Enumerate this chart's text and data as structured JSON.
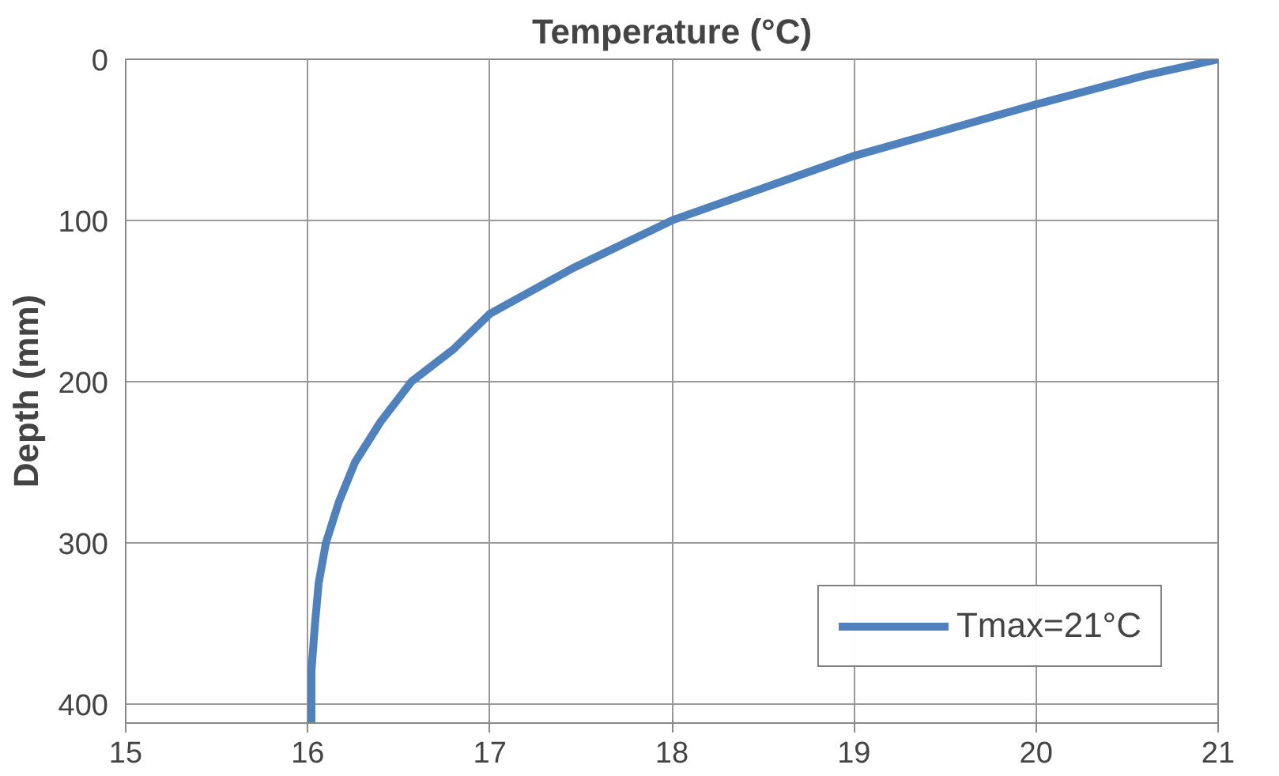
{
  "chart_data": {
    "type": "line",
    "title": "Temperature (°C)",
    "ylabel": "Depth (mm)",
    "xlim": [
      15,
      21
    ],
    "xticks": [
      15,
      16,
      17,
      18,
      19,
      20,
      21
    ],
    "ylim": [
      412,
      0
    ],
    "yticks": [
      0,
      100,
      200,
      300,
      400
    ],
    "grid": true,
    "legend": "bottom right",
    "marker": "none",
    "line_style": "solid",
    "series": [
      {
        "name": "Tmax=21°C",
        "color": "#4f81bd",
        "x": [
          21,
          20.6,
          20,
          19.5,
          19,
          18.5,
          18,
          17.45,
          17,
          16.8,
          16.57,
          16.4,
          16.26,
          16.17,
          16.1,
          16.06,
          16.04,
          16.02,
          16.02
        ],
        "values": [
          0,
          10,
          28,
          44,
          60,
          80,
          100,
          130,
          158,
          180,
          200,
          225,
          250,
          275,
          300,
          325,
          350,
          380,
          412
        ]
      }
    ]
  }
}
